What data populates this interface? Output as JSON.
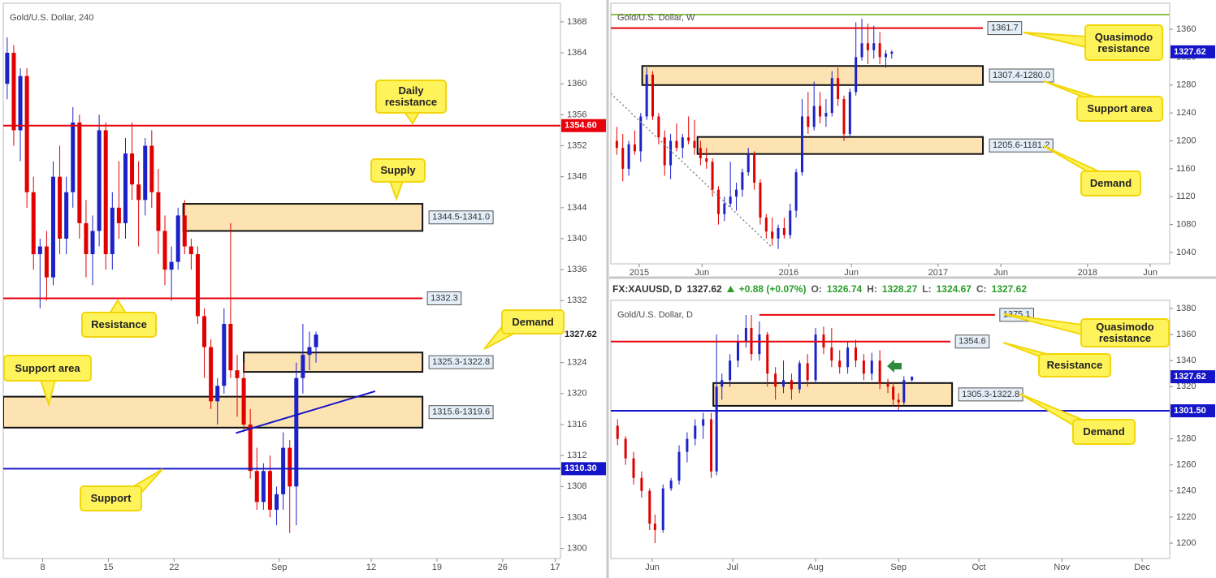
{
  "quote": {
    "symbol": "FX:XAUUSD, D",
    "last": "1327.62",
    "change": "+0.88 (+0.07%)",
    "fields": [
      {
        "label": "O:",
        "value": "1326.74"
      },
      {
        "label": "H:",
        "value": "1328.27"
      },
      {
        "label": "L:",
        "value": "1324.67"
      },
      {
        "label": "C:",
        "value": "1327.62"
      }
    ]
  },
  "chart_data": [
    {
      "type": "candlestick",
      "title": "Gold/U.S. Dollar, 240",
      "xlim": [
        -3,
        39.4
      ],
      "xticks": [
        {
          "value": 0,
          "label": "8"
        },
        {
          "value": 5,
          "label": "15"
        },
        {
          "value": 10,
          "label": "22"
        },
        {
          "value": 18,
          "label": "Sep"
        },
        {
          "value": 25,
          "label": "12"
        },
        {
          "value": 30,
          "label": "19"
        },
        {
          "value": 35,
          "label": "26"
        },
        {
          "value": 39,
          "label": "17"
        }
      ],
      "ylim": [
        1298.7,
        1370.4
      ],
      "yticks": [
        1300,
        1304,
        1308,
        1312,
        1316,
        1320,
        1324,
        1328,
        1332,
        1336,
        1340,
        1344,
        1348,
        1352,
        1356,
        1360,
        1364,
        1368
      ],
      "candles": {
        "up_color": "#1c22c8",
        "down_color": "#e00000",
        "x": [
          -2.7,
          -2.2,
          -1.7,
          -1.2,
          -0.7,
          -0.2,
          0.3,
          0.8,
          1.3,
          1.8,
          2.3,
          2.8,
          3.3,
          3.8,
          4.3,
          4.8,
          5.3,
          5.8,
          6.3,
          6.8,
          7.3,
          7.8,
          8.3,
          8.8,
          9.3,
          9.8,
          10.3,
          10.8,
          11.3,
          11.8,
          12.3,
          12.8,
          13.3,
          13.8,
          14.3,
          14.8,
          15.3,
          15.8,
          16.3,
          16.8,
          17.3,
          17.8,
          18.3,
          18.8,
          19.3,
          19.8,
          20.3,
          20.8
        ],
        "open": [
          1360,
          1364,
          1354,
          1361,
          1346,
          1338,
          1339,
          1335,
          1348,
          1340,
          1346,
          1355,
          1342,
          1338,
          1341,
          1354,
          1338,
          1344,
          1342,
          1351,
          1347,
          1345,
          1352,
          1346,
          1341,
          1336,
          1337,
          1343,
          1339,
          1338,
          1330,
          1326,
          1319,
          1321,
          1329,
          1323,
          1322,
          1316,
          1310,
          1306,
          1310,
          1305,
          1307,
          1313,
          1308,
          1322,
          1325,
          1326
        ],
        "high": [
          1366,
          1365,
          1362,
          1362,
          1348,
          1340,
          1341,
          1350,
          1352,
          1348,
          1357,
          1356,
          1345,
          1343,
          1356,
          1355,
          1346,
          1350,
          1353,
          1355,
          1350,
          1353,
          1354,
          1349,
          1343,
          1339,
          1344,
          1345,
          1340,
          1339,
          1331,
          1327,
          1322,
          1331,
          1342,
          1325,
          1324,
          1318,
          1313,
          1311,
          1312,
          1308,
          1315,
          1314,
          1324,
          1329,
          1328,
          1328
        ],
        "low": [
          1358,
          1352,
          1350,
          1344,
          1336,
          1331,
          1332,
          1334,
          1338,
          1338,
          1344,
          1340,
          1335,
          1334,
          1339,
          1336,
          1336,
          1340,
          1340,
          1345,
          1339,
          1343,
          1344,
          1338,
          1334,
          1332,
          1336,
          1338,
          1336,
          1329,
          1322,
          1318,
          1316,
          1320,
          1322,
          1317,
          1315,
          1309,
          1305,
          1305,
          1304,
          1303,
          1305,
          1302,
          1303,
          1320,
          1323,
          1324
        ],
        "close": [
          1364,
          1354,
          1361,
          1346,
          1338,
          1339,
          1335,
          1348,
          1340,
          1346,
          1355,
          1342,
          1338,
          1341,
          1354,
          1338,
          1344,
          1342,
          1351,
          1347,
          1345,
          1352,
          1346,
          1341,
          1336,
          1337,
          1343,
          1339,
          1338,
          1330,
          1326,
          1319,
          1321,
          1329,
          1323,
          1322,
          1316,
          1310,
          1306,
          1310,
          1305,
          1307,
          1313,
          1308,
          1322,
          1325,
          1326,
          1327.62
        ]
      },
      "levels": [
        {
          "value": 1354.6,
          "label": "1354.60",
          "color": "#e8000b",
          "axis_tag": true
        },
        {
          "value": 1332.3,
          "label": "1332.3",
          "color": "#e8000b",
          "x": [
            -3,
            28.9
          ]
        },
        {
          "value": 1310.3,
          "label": "1310.30",
          "color": "#1414c8",
          "axis_tag": true
        }
      ],
      "zones": [
        {
          "label": "1344.5-1341.0",
          "low": 1341.0,
          "high": 1344.5,
          "x": [
            10.7,
            28.9
          ]
        },
        {
          "label": "1325.3-1322.8",
          "low": 1322.8,
          "high": 1325.3,
          "x": [
            15.3,
            28.9
          ]
        },
        {
          "label": "1315.6-1319.6",
          "low": 1315.6,
          "high": 1319.6,
          "x": [
            -3,
            28.9
          ]
        }
      ],
      "trendlines": [
        {
          "x": [
            14.7,
            25.3
          ],
          "y": [
            1314.9,
            1320.3
          ],
          "color": "#1414c8"
        }
      ],
      "last_price": 1327.62,
      "last_price_color": "#ffffff",
      "last_price_text": "#222222",
      "zone_fill": "#fde3b1",
      "callouts": [
        "Daily resistance",
        "Supply",
        "Demand",
        "Resistance",
        "Support area",
        "Support"
      ]
    },
    {
      "type": "candlestick",
      "title": "Gold/U.S. Dollar, W",
      "xlim": [
        2014.81,
        2018.55
      ],
      "xticks": [
        2015,
        {
          "value": 2015.42,
          "label": "Jun"
        },
        2016,
        {
          "value": 2016.42,
          "label": "Jun"
        },
        2017,
        {
          "value": 2017.42,
          "label": "Jun"
        },
        2018,
        {
          "value": 2018.42,
          "label": "Jun"
        }
      ],
      "ylim": [
        1023.7,
        1397.3
      ],
      "yticks": [
        1040,
        1080,
        1120,
        1160,
        1200,
        1240,
        1280,
        1320,
        1360
      ],
      "candles": {
        "up_color": "#1c22c8",
        "down_color": "#e00000",
        "x": [
          2014.85,
          2014.89,
          2014.93,
          2014.97,
          2015.01,
          2015.05,
          2015.09,
          2015.13,
          2015.17,
          2015.21,
          2015.25,
          2015.29,
          2015.33,
          2015.37,
          2015.41,
          2015.45,
          2015.49,
          2015.53,
          2015.57,
          2015.61,
          2015.65,
          2015.69,
          2015.73,
          2015.77,
          2015.81,
          2015.85,
          2015.89,
          2015.93,
          2015.97,
          2016.01,
          2016.05,
          2016.09,
          2016.13,
          2016.17,
          2016.21,
          2016.25,
          2016.29,
          2016.33,
          2016.37,
          2016.41,
          2016.45,
          2016.49,
          2016.53,
          2016.57,
          2016.61,
          2016.65,
          2016.69
        ],
        "open": [
          1200,
          1190,
          1160,
          1195,
          1185,
          1235,
          1295,
          1235,
          1205,
          1165,
          1200,
          1190,
          1205,
          1200,
          1190,
          1175,
          1170,
          1130,
          1095,
          1110,
          1120,
          1130,
          1155,
          1180,
          1140,
          1090,
          1070,
          1060,
          1075,
          1065,
          1100,
          1155,
          1235,
          1220,
          1250,
          1235,
          1240,
          1290,
          1260,
          1210,
          1270,
          1320,
          1340,
          1330,
          1340,
          1320,
          1325
        ],
        "high": [
          1220,
          1210,
          1200,
          1215,
          1240,
          1305,
          1300,
          1240,
          1215,
          1210,
          1225,
          1210,
          1235,
          1230,
          1200,
          1190,
          1175,
          1135,
          1120,
          1170,
          1140,
          1160,
          1190,
          1185,
          1145,
          1095,
          1090,
          1080,
          1090,
          1110,
          1160,
          1260,
          1270,
          1285,
          1270,
          1260,
          1300,
          1305,
          1265,
          1275,
          1370,
          1375,
          1368,
          1365,
          1356,
          1330,
          1330
        ],
        "low": [
          1180,
          1142,
          1150,
          1180,
          1170,
          1230,
          1230,
          1195,
          1150,
          1145,
          1185,
          1175,
          1195,
          1180,
          1165,
          1160,
          1120,
          1080,
          1085,
          1105,
          1100,
          1120,
          1150,
          1130,
          1080,
          1060,
          1050,
          1045,
          1060,
          1060,
          1090,
          1150,
          1210,
          1215,
          1225,
          1220,
          1235,
          1250,
          1200,
          1205,
          1265,
          1315,
          1310,
          1318,
          1310,
          1305,
          1318
        ],
        "close": [
          1190,
          1160,
          1195,
          1185,
          1235,
          1295,
          1235,
          1205,
          1165,
          1200,
          1190,
          1205,
          1200,
          1190,
          1175,
          1170,
          1130,
          1095,
          1110,
          1120,
          1130,
          1155,
          1180,
          1140,
          1090,
          1070,
          1060,
          1075,
          1065,
          1100,
          1155,
          1235,
          1220,
          1250,
          1235,
          1240,
          1290,
          1260,
          1210,
          1270,
          1320,
          1340,
          1330,
          1340,
          1320,
          1325,
          1327.62
        ]
      },
      "levels": [
        {
          "value": 1381,
          "color": "#8bc34a"
        },
        {
          "value": 1361.7,
          "label": "1361.7",
          "color": "#e8000b",
          "x": [
            2014.81,
            2017.3
          ]
        }
      ],
      "zones": [
        {
          "label": "1307.4-1280.0",
          "low": 1280.0,
          "high": 1307.4,
          "x": [
            2015.02,
            2017.3
          ]
        },
        {
          "label": "1205.6-1181.2",
          "low": 1181.2,
          "high": 1205.6,
          "x": [
            2015.39,
            2017.3
          ]
        }
      ],
      "trendlines": [
        {
          "x": [
            2014.81,
            2015.89
          ],
          "y": [
            1268,
            1047
          ],
          "color": "#888888",
          "dash": true
        }
      ],
      "last_price": 1327.62,
      "last_price_color": "#1414c8",
      "last_price_text": "#ffffff",
      "zone_fill": "#fde3b1",
      "callouts": [
        "Quasimodo resistance",
        "Support area",
        "Demand"
      ]
    },
    {
      "type": "candlestick",
      "title": "Gold/U.S. Dollar, D",
      "xlim": [
        136.5,
        345.3
      ],
      "xticks": [
        {
          "value": 152,
          "label": "Jun"
        },
        {
          "value": 182,
          "label": "Jul"
        },
        {
          "value": 213,
          "label": "Aug"
        },
        {
          "value": 244,
          "label": "Sep"
        },
        {
          "value": 274,
          "label": "Oct"
        },
        {
          "value": 305,
          "label": "Nov"
        },
        {
          "value": 335,
          "label": "Dec"
        }
      ],
      "ylim": [
        1188.2,
        1386.2
      ],
      "yticks": [
        1200,
        1220,
        1240,
        1260,
        1280,
        1300,
        1320,
        1340,
        1360,
        1380
      ],
      "candles": {
        "up_color": "#1c22c8",
        "down_color": "#e00000",
        "x": [
          139,
          142,
          145,
          148,
          151,
          153,
          156,
          159,
          162,
          165,
          168,
          171,
          174,
          176,
          178,
          181,
          184,
          187,
          189,
          192,
          195,
          198,
          201,
          204,
          207,
          210,
          213,
          216,
          219,
          222,
          225,
          228,
          231,
          234,
          237,
          240,
          242,
          244,
          246,
          249
        ],
        "open": [
          1290,
          1280,
          1265,
          1250,
          1240,
          1215,
          1210,
          1242,
          1248,
          1270,
          1280,
          1290,
          1295,
          1255,
          1320,
          1325,
          1340,
          1355,
          1365,
          1345,
          1360,
          1330,
          1320,
          1325,
          1318,
          1338,
          1325,
          1360,
          1350,
          1340,
          1335,
          1350,
          1340,
          1330,
          1340,
          1322,
          1320,
          1310,
          1308,
          1325
        ],
        "high": [
          1295,
          1282,
          1270,
          1255,
          1242,
          1222,
          1245,
          1250,
          1275,
          1285,
          1295,
          1300,
          1300,
          1360,
          1330,
          1345,
          1360,
          1375,
          1375,
          1370,
          1362,
          1335,
          1340,
          1330,
          1340,
          1345,
          1365,
          1366,
          1365,
          1348,
          1355,
          1356,
          1345,
          1346,
          1348,
          1326,
          1323,
          1315,
          1328,
          1328
        ],
        "low": [
          1275,
          1260,
          1245,
          1235,
          1210,
          1200,
          1208,
          1240,
          1245,
          1262,
          1275,
          1280,
          1250,
          1252,
          1310,
          1320,
          1335,
          1350,
          1340,
          1340,
          1320,
          1310,
          1315,
          1310,
          1315,
          1320,
          1322,
          1345,
          1335,
          1330,
          1330,
          1335,
          1325,
          1325,
          1318,
          1315,
          1305,
          1302,
          1306,
          1324
        ],
        "close": [
          1280,
          1265,
          1250,
          1240,
          1215,
          1210,
          1242,
          1248,
          1270,
          1280,
          1290,
          1295,
          1255,
          1320,
          1325,
          1340,
          1355,
          1365,
          1345,
          1360,
          1330,
          1320,
          1325,
          1318,
          1338,
          1325,
          1360,
          1350,
          1340,
          1335,
          1350,
          1340,
          1330,
          1340,
          1322,
          1320,
          1310,
          1308,
          1325,
          1327.62
        ]
      },
      "levels": [
        {
          "value": 1375.1,
          "label": "1375.1",
          "color": "#e8000b",
          "x": [
            192,
            280
          ]
        },
        {
          "value": 1354.6,
          "label": "1354.6",
          "color": "#e8000b",
          "x": [
            136.5,
            263.4
          ]
        },
        {
          "value": 1301.5,
          "label": "1301.50",
          "color": "#1414c8",
          "axis_tag": true
        }
      ],
      "zones": [
        {
          "label": "1305.3-1322.8",
          "low": 1305.3,
          "high": 1322.8,
          "x": [
            174.8,
            264
          ]
        }
      ],
      "trendlines": [],
      "last_price": 1327.62,
      "last_price_color": "#1414c8",
      "last_price_text": "#ffffff",
      "zone_fill": "#fde3b1",
      "callouts": [
        "Quasimodo resistance",
        "Resistance",
        "Demand"
      ]
    }
  ]
}
